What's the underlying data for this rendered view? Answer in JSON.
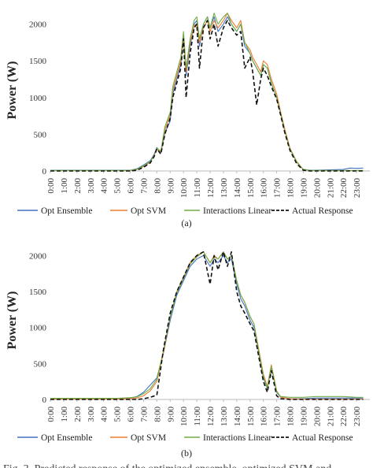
{
  "chart_data": [
    {
      "type": "line",
      "panel": "(a)",
      "ylabel": "Power (W)",
      "ylim": [
        0,
        2200
      ],
      "yticks": [
        0,
        500,
        1000,
        1500,
        2000
      ],
      "xticks": [
        "0:00",
        "1:00",
        "2:00",
        "3:00",
        "4:00",
        "5:00",
        "6:00",
        "7:00",
        "8:00",
        "9:00",
        "10:00",
        "11:00",
        "12:00",
        "13:00",
        "14:00",
        "15:00",
        "16:00",
        "17:00",
        "18:00",
        "19:00",
        "20:00",
        "21:00",
        "22:00",
        "23:00"
      ],
      "legend_position": "bottom",
      "series": [
        {
          "name": "Opt Ensemble",
          "color": "#4472c4",
          "dash": "none",
          "x": [
            0,
            6,
            6.5,
            7,
            7.5,
            7.8,
            8,
            8.3,
            8.6,
            9,
            9.2,
            9.5,
            9.8,
            10,
            10.2,
            10.5,
            10.8,
            11,
            11.2,
            11.5,
            11.8,
            12,
            12.3,
            12.6,
            13,
            13.3,
            13.6,
            14,
            14.3,
            14.6,
            15,
            15.2,
            15.5,
            15.8,
            16,
            16.3,
            16.6,
            17,
            17.3,
            17.6,
            18,
            18.5,
            19,
            19.5,
            20,
            21,
            22,
            22.5,
            23,
            23.5
          ],
          "y": [
            10,
            10,
            30,
            80,
            140,
            230,
            320,
            250,
            520,
            680,
            1050,
            1250,
            1450,
            1850,
            1300,
            1700,
            2000,
            2050,
            1700,
            2000,
            2100,
            1950,
            2100,
            1900,
            2000,
            2100,
            2000,
            1900,
            2000,
            1700,
            1600,
            1500,
            1400,
            1300,
            1450,
            1400,
            1200,
            1000,
            780,
            560,
            300,
            120,
            20,
            10,
            10,
            15,
            20,
            40,
            35,
            40
          ]
        },
        {
          "name": "Opt SVM",
          "color": "#ed7d31",
          "dash": "none",
          "x": [
            0,
            6,
            6.5,
            7,
            7.5,
            7.8,
            8,
            8.3,
            8.6,
            9,
            9.2,
            9.5,
            9.8,
            10,
            10.2,
            10.5,
            10.8,
            11,
            11.2,
            11.5,
            11.8,
            12,
            12.3,
            12.6,
            13,
            13.3,
            13.6,
            14,
            14.3,
            14.6,
            15,
            15.2,
            15.5,
            15.8,
            16,
            16.3,
            16.6,
            17,
            17.3,
            17.6,
            18,
            18.5,
            19,
            19.5,
            20,
            21,
            22,
            22.5,
            23,
            23.5
          ],
          "y": [
            5,
            5,
            20,
            60,
            120,
            220,
            300,
            260,
            560,
            760,
            1100,
            1300,
            1500,
            1800,
            1350,
            1750,
            1980,
            2000,
            1750,
            1950,
            2050,
            1900,
            2050,
            1950,
            2050,
            2150,
            2050,
            1950,
            2050,
            1750,
            1650,
            1550,
            1450,
            1350,
            1500,
            1450,
            1250,
            1050,
            800,
            580,
            310,
            130,
            20,
            5,
            5,
            5,
            5,
            5,
            5,
            5
          ]
        },
        {
          "name": "Interactions Linear",
          "color": "#70ad47",
          "dash": "none",
          "x": [
            0,
            6,
            6.5,
            7,
            7.5,
            7.8,
            8,
            8.3,
            8.6,
            9,
            9.2,
            9.5,
            9.8,
            10,
            10.2,
            10.5,
            10.8,
            11,
            11.2,
            11.5,
            11.8,
            12,
            12.3,
            12.6,
            13,
            13.3,
            13.6,
            14,
            14.3,
            14.6,
            15,
            15.2,
            15.5,
            15.8,
            16,
            16.3,
            16.6,
            17,
            17.3,
            17.6,
            18,
            18.5,
            19,
            19.5,
            20,
            21,
            22,
            22.5,
            23,
            23.5
          ],
          "y": [
            8,
            8,
            25,
            70,
            130,
            210,
            310,
            270,
            600,
            800,
            1150,
            1350,
            1550,
            1900,
            1400,
            1800,
            2050,
            2100,
            1800,
            2000,
            2100,
            1950,
            2150,
            2000,
            2100,
            2150,
            2000,
            1900,
            2000,
            1750,
            1600,
            1500,
            1400,
            1300,
            1450,
            1400,
            1200,
            1000,
            780,
            550,
            300,
            120,
            20,
            8,
            8,
            8,
            8,
            8,
            8,
            8
          ]
        },
        {
          "name": "Actual Response",
          "color": "#111111",
          "dash": "5,3",
          "x": [
            0,
            6,
            6.5,
            7,
            7.5,
            7.8,
            8,
            8.3,
            8.6,
            9,
            9.2,
            9.5,
            9.8,
            10,
            10.2,
            10.5,
            10.8,
            11,
            11.2,
            11.5,
            11.8,
            12,
            12.3,
            12.6,
            13,
            13.3,
            13.6,
            14,
            14.3,
            14.6,
            15,
            15.2,
            15.5,
            15.8,
            16,
            16.3,
            16.6,
            17,
            17.3,
            17.6,
            18,
            18.5,
            19,
            19.5,
            20,
            21,
            22,
            22.5,
            23,
            23.5
          ],
          "y": [
            0,
            0,
            10,
            50,
            110,
            200,
            300,
            230,
            500,
            720,
            1000,
            1200,
            1400,
            1800,
            1000,
            1600,
            1950,
            2000,
            1400,
            1950,
            2050,
            1800,
            2000,
            1700,
            1950,
            2050,
            1950,
            1850,
            1900,
            1400,
            1550,
            1350,
            900,
            1250,
            1400,
            1300,
            1150,
            980,
            760,
            530,
            280,
            100,
            10,
            0,
            0,
            0,
            0,
            0,
            0,
            0
          ]
        }
      ]
    },
    {
      "type": "line",
      "panel": "(b)",
      "ylabel": "Power (W)",
      "ylim": [
        0,
        2200
      ],
      "yticks": [
        0,
        500,
        1000,
        1500,
        2000
      ],
      "xticks": [
        "0:00",
        "1:00",
        "2:00",
        "3:00",
        "4:00",
        "5:00",
        "6:00",
        "7:00",
        "8:00",
        "9:00",
        "10:00",
        "11:00",
        "12:00",
        "13:00",
        "14:00",
        "15:00",
        "16:00",
        "17:00",
        "18:00",
        "19:00",
        "20:00",
        "21:00",
        "22:00",
        "23:00"
      ],
      "legend_position": "bottom",
      "series": [
        {
          "name": "Opt Ensemble",
          "color": "#4472c4",
          "dash": "none",
          "x": [
            0,
            5,
            6,
            6.5,
            7,
            7.5,
            8,
            8.5,
            9,
            9.5,
            10,
            10.5,
            11,
            11.5,
            12,
            12.3,
            12.6,
            13,
            13.3,
            13.6,
            14,
            14.3,
            14.6,
            15,
            15.3,
            15.6,
            16,
            16.3,
            16.6,
            17,
            17.3,
            18,
            19,
            20,
            21,
            22,
            23,
            23.5
          ],
          "y": [
            10,
            10,
            20,
            40,
            100,
            200,
            300,
            650,
            1100,
            1450,
            1650,
            1850,
            1950,
            2000,
            1850,
            1950,
            1900,
            2000,
            1900,
            1950,
            1600,
            1400,
            1300,
            1100,
            1000,
            700,
            300,
            150,
            450,
            100,
            30,
            10,
            10,
            20,
            20,
            20,
            20,
            20
          ]
        },
        {
          "name": "Opt SVM",
          "color": "#ed7d31",
          "dash": "none",
          "x": [
            0,
            5,
            6,
            6.5,
            7,
            7.5,
            8,
            8.5,
            9,
            9.5,
            10,
            10.5,
            11,
            11.5,
            12,
            12.3,
            12.6,
            13,
            13.3,
            13.6,
            14,
            14.3,
            14.6,
            15,
            15.3,
            15.6,
            16,
            16.3,
            16.6,
            17,
            17.3,
            18,
            19,
            20,
            21,
            22,
            23,
            23.5
          ],
          "y": [
            5,
            5,
            10,
            20,
            50,
            120,
            250,
            650,
            1150,
            1500,
            1700,
            1900,
            2000,
            2050,
            1900,
            2000,
            1950,
            2050,
            1950,
            2000,
            1650,
            1450,
            1350,
            1150,
            1050,
            750,
            350,
            180,
            480,
            120,
            30,
            10,
            5,
            5,
            5,
            5,
            5,
            5
          ]
        },
        {
          "name": "Interactions Linear",
          "color": "#70ad47",
          "dash": "none",
          "x": [
            0,
            5,
            6,
            6.5,
            7,
            7.5,
            8,
            8.5,
            9,
            9.5,
            10,
            10.5,
            11,
            11.5,
            12,
            12.3,
            12.6,
            13,
            13.3,
            13.6,
            14,
            14.3,
            14.6,
            15,
            15.3,
            15.6,
            16,
            16.3,
            16.6,
            17,
            17.3,
            18,
            19,
            20,
            21,
            22,
            23,
            23.5
          ],
          "y": [
            15,
            15,
            25,
            35,
            80,
            150,
            280,
            680,
            1150,
            1480,
            1680,
            1880,
            1980,
            2050,
            1900,
            1980,
            1950,
            2050,
            1950,
            2000,
            1650,
            1450,
            1350,
            1150,
            1050,
            720,
            320,
            160,
            460,
            110,
            40,
            30,
            30,
            40,
            40,
            40,
            30,
            30
          ]
        },
        {
          "name": "Actual Response",
          "color": "#111111",
          "dash": "5,3",
          "x": [
            0,
            5,
            6,
            6.5,
            7,
            7.5,
            8,
            8.5,
            9,
            9.5,
            10,
            10.5,
            11,
            11.5,
            12,
            12.3,
            12.6,
            13,
            13.3,
            13.6,
            14,
            14.3,
            14.6,
            15,
            15.3,
            15.6,
            16,
            16.3,
            16.6,
            17,
            17.3,
            18,
            19,
            20,
            21,
            22,
            23,
            23.5
          ],
          "y": [
            0,
            0,
            0,
            0,
            10,
            30,
            60,
            700,
            1200,
            1500,
            1700,
            1900,
            2000,
            2050,
            1600,
            2000,
            1800,
            2050,
            1850,
            2050,
            1500,
            1300,
            1200,
            1050,
            950,
            650,
            250,
            100,
            400,
            50,
            10,
            0,
            0,
            0,
            0,
            0,
            0,
            0
          ]
        }
      ]
    }
  ],
  "caption": "Fig. 3. Predicted response of the optimized ensemble, optimized SVM and"
}
